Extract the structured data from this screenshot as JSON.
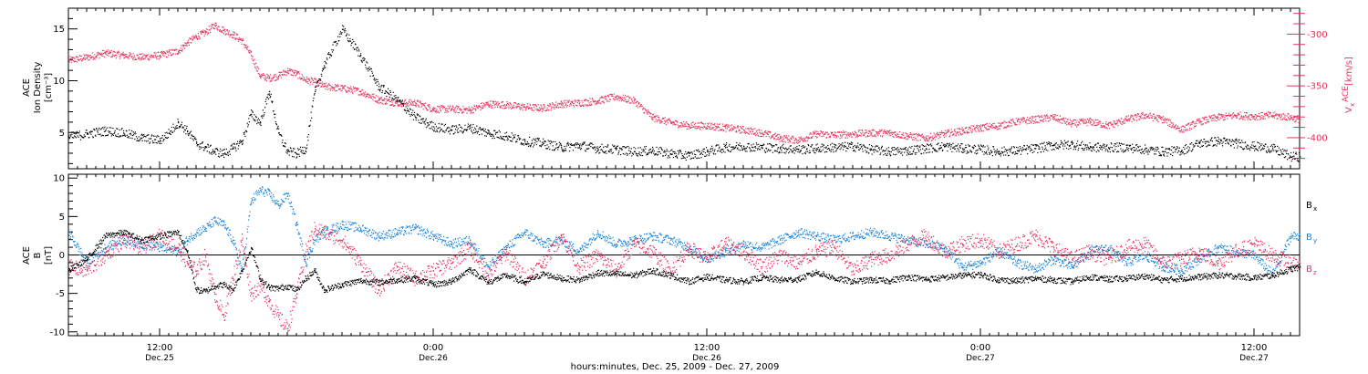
{
  "chart_data": [
    {
      "type": "scatter",
      "panel": "top",
      "ylabel_left": [
        "ACE",
        "Ion Density",
        "[cm⁻³]"
      ],
      "ylabel_right": [
        "V",
        "x",
        "ACE",
        "[km/s]"
      ],
      "left_axis": {
        "ylim": [
          1.5,
          17
        ],
        "ticks": [
          5,
          10,
          15
        ],
        "color": "#000000"
      },
      "right_axis": {
        "ylim": [
          -430,
          -275
        ],
        "ticks": [
          -300,
          -350,
          -400
        ],
        "color": "#e8315c"
      },
      "series": [
        {
          "name": "Ion Density",
          "axis": "left",
          "color": "#000000",
          "x": [
            0,
            2,
            4,
            6,
            8,
            10,
            11,
            12,
            13,
            14,
            15,
            16,
            17,
            18,
            19,
            20,
            21,
            22,
            23,
            24,
            25,
            26,
            27,
            28,
            30,
            32,
            34,
            36,
            38,
            40,
            42,
            44,
            46,
            48,
            50,
            52,
            54,
            56,
            58,
            60,
            62,
            64,
            66,
            68,
            70,
            72,
            74,
            76,
            78,
            80,
            82,
            84,
            86,
            88,
            90,
            92,
            94,
            96,
            98,
            100,
            102,
            104,
            106,
            108,
            110,
            112,
            114,
            116,
            118,
            120,
            122,
            124,
            126,
            128,
            130,
            132,
            134,
            135
          ],
          "y": [
            4.6,
            4.9,
            5.2,
            5.0,
            4.5,
            4.3,
            5.0,
            6.0,
            5.2,
            4.0,
            3.6,
            3.2,
            3.0,
            3.5,
            4.2,
            6.8,
            6.0,
            9.0,
            5.0,
            3.2,
            3.0,
            3.5,
            9.0,
            11.5,
            15.0,
            12.5,
            9.5,
            8.2,
            6.5,
            5.6,
            5.3,
            5.5,
            5.0,
            4.7,
            4.2,
            4.0,
            3.6,
            3.8,
            3.5,
            3.4,
            3.2,
            3.3,
            3.0,
            2.8,
            3.2,
            3.6,
            3.7,
            3.6,
            3.5,
            3.4,
            3.5,
            3.6,
            3.7,
            3.4,
            3.2,
            3.3,
            3.5,
            3.7,
            3.5,
            3.4,
            3.2,
            3.3,
            3.5,
            3.8,
            3.9,
            3.6,
            3.6,
            3.6,
            3.4,
            3.2,
            3.3,
            4.0,
            4.2,
            4.0,
            3.7,
            3.5,
            2.7,
            2.7
          ]
        },
        {
          "name": "Vx",
          "axis": "right",
          "color": "#e8315c",
          "x": [
            0,
            2,
            4,
            6,
            8,
            10,
            12,
            13,
            14,
            15,
            16,
            17,
            18,
            19,
            20,
            21,
            22,
            23,
            24,
            25,
            26,
            27,
            28,
            30,
            32,
            34,
            36,
            38,
            40,
            42,
            44,
            46,
            48,
            50,
            52,
            54,
            56,
            58,
            60,
            62,
            64,
            66,
            68,
            70,
            72,
            74,
            76,
            78,
            80,
            82,
            84,
            86,
            88,
            90,
            92,
            94,
            96,
            98,
            100,
            102,
            104,
            106,
            108,
            110,
            112,
            114,
            116,
            118,
            120,
            122,
            124,
            126,
            128,
            130,
            132,
            134,
            135
          ],
          "y": [
            -325,
            -322,
            -318,
            -320,
            -322,
            -320,
            -316,
            -308,
            -302,
            -298,
            -291,
            -296,
            -300,
            -306,
            -320,
            -340,
            -342,
            -340,
            -335,
            -338,
            -344,
            -346,
            -350,
            -352,
            -355,
            -363,
            -366,
            -366,
            -372,
            -372,
            -373,
            -367,
            -368,
            -370,
            -371,
            -367,
            -366,
            -364,
            -360,
            -364,
            -380,
            -385,
            -388,
            -388,
            -390,
            -392,
            -395,
            -400,
            -402,
            -396,
            -397,
            -396,
            -395,
            -395,
            -398,
            -400,
            -396,
            -393,
            -390,
            -388,
            -384,
            -382,
            -380,
            -386,
            -384,
            -388,
            -382,
            -378,
            -382,
            -392,
            -384,
            -380,
            -378,
            -379,
            -378,
            -380,
            -382
          ]
        }
      ]
    },
    {
      "type": "scatter",
      "panel": "bottom",
      "ylabel_left": [
        "ACE",
        "B",
        "[nT]"
      ],
      "ylim": [
        -10.5,
        10.5
      ],
      "yticks": [
        10,
        5,
        0,
        -5,
        -10
      ],
      "zero_line": true,
      "legend": [
        "B",
        "B",
        "B"
      ],
      "legend_subscripts": [
        "x",
        "y",
        "z"
      ],
      "legend_placement": "right",
      "series": [
        {
          "name": "Bx",
          "color": "#000000",
          "x": [
            0,
            2,
            4,
            6,
            8,
            10,
            12,
            13,
            14,
            15,
            16,
            17,
            18,
            19,
            20,
            21,
            22,
            23,
            24,
            25,
            26,
            27,
            28,
            30,
            32,
            34,
            36,
            38,
            40,
            42,
            44,
            46,
            48,
            50,
            52,
            54,
            56,
            58,
            60,
            62,
            64,
            66,
            68,
            70,
            72,
            74,
            76,
            78,
            80,
            82,
            84,
            86,
            88,
            90,
            92,
            94,
            96,
            98,
            100,
            102,
            104,
            106,
            108,
            110,
            112,
            114,
            116,
            118,
            120,
            122,
            124,
            126,
            128,
            130,
            132,
            134,
            135
          ],
          "y": [
            -2.0,
            -0.5,
            2.5,
            3.0,
            2.0,
            2.5,
            3.0,
            0.5,
            -4.5,
            -4.7,
            -4.0,
            -3.8,
            -4.5,
            -2.0,
            1.0,
            -3.0,
            -4.2,
            -4.3,
            -4.0,
            -4.5,
            -3.0,
            -2.0,
            -4.5,
            -3.8,
            -3.3,
            -3.5,
            -3.2,
            -3.0,
            -3.8,
            -3.4,
            -1.8,
            -3.5,
            -2.6,
            -3.5,
            -2.4,
            -3.0,
            -3.2,
            -2.3,
            -2.4,
            -2.6,
            -2.0,
            -2.6,
            -3.4,
            -2.8,
            -3.2,
            -3.4,
            -2.9,
            -3.2,
            -3.1,
            -2.2,
            -3.0,
            -3.4,
            -3.2,
            -3.3,
            -2.8,
            -3.1,
            -2.9,
            -2.6,
            -2.5,
            -3.2,
            -3.3,
            -3.0,
            -3.2,
            -3.4,
            -2.8,
            -3.1,
            -3.0,
            -2.7,
            -3.2,
            -3.0,
            -2.8,
            -2.6,
            -2.7,
            -2.9,
            -2.6,
            -1.8,
            -1.5
          ]
        },
        {
          "name": "By",
          "color": "#1783e0",
          "x": [
            0,
            2,
            4,
            6,
            8,
            10,
            12,
            13,
            14,
            15,
            16,
            17,
            18,
            19,
            20,
            21,
            22,
            23,
            24,
            25,
            26,
            27,
            28,
            30,
            32,
            34,
            36,
            38,
            40,
            42,
            44,
            46,
            48,
            50,
            52,
            54,
            56,
            58,
            60,
            62,
            64,
            66,
            68,
            70,
            72,
            74,
            76,
            78,
            80,
            82,
            84,
            86,
            88,
            90,
            92,
            94,
            96,
            98,
            100,
            102,
            104,
            106,
            108,
            110,
            112,
            114,
            116,
            118,
            120,
            122,
            124,
            126,
            128,
            130,
            132,
            134,
            135
          ],
          "y": [
            3.0,
            -1.0,
            1.0,
            2.0,
            1.5,
            1.0,
            0.5,
            2.0,
            3.0,
            3.5,
            4.5,
            4.0,
            2.0,
            -2.0,
            7.0,
            8.5,
            8.0,
            6.5,
            8.0,
            4.0,
            -1.0,
            2.0,
            3.0,
            4.0,
            3.5,
            2.5,
            3.0,
            3.5,
            2.5,
            1.5,
            2.0,
            -1.5,
            1.0,
            3.0,
            1.5,
            2.0,
            0.5,
            3.0,
            1.5,
            2.0,
            2.5,
            2.0,
            1.0,
            -0.5,
            0.5,
            1.5,
            1.0,
            2.0,
            3.0,
            2.5,
            2.0,
            2.5,
            3.0,
            2.5,
            2.0,
            1.5,
            1.0,
            -1.5,
            -1.0,
            0.5,
            -1.0,
            -1.8,
            -0.5,
            -1.5,
            0.5,
            1.0,
            -1.0,
            0.0,
            -1.5,
            -2.0,
            -0.5,
            1.0,
            0.5,
            0.0,
            -2.5,
            2.5,
            2.5
          ]
        },
        {
          "name": "Bz",
          "color": "#e8315c",
          "x": [
            0,
            2,
            4,
            6,
            8,
            10,
            12,
            13,
            14,
            15,
            16,
            17,
            18,
            19,
            20,
            21,
            22,
            23,
            24,
            25,
            26,
            27,
            28,
            30,
            32,
            34,
            36,
            38,
            40,
            42,
            44,
            46,
            48,
            50,
            52,
            54,
            56,
            58,
            60,
            62,
            64,
            66,
            68,
            70,
            72,
            74,
            76,
            78,
            80,
            82,
            84,
            86,
            88,
            90,
            92,
            94,
            96,
            98,
            100,
            102,
            104,
            106,
            108,
            110,
            112,
            114,
            116,
            118,
            120,
            122,
            124,
            126,
            128,
            130,
            132,
            134,
            135
          ],
          "y": [
            -1.5,
            -2.0,
            0.0,
            2.0,
            1.0,
            2.5,
            1.0,
            -1.0,
            -2.0,
            0.0,
            -5.0,
            -8.0,
            -3.0,
            2.0,
            -5.0,
            -4.0,
            -6.0,
            -8.0,
            -9.5,
            -5.0,
            0.5,
            3.5,
            3.0,
            2.0,
            -1.0,
            -4.5,
            -1.5,
            -3.0,
            -2.0,
            -1.0,
            1.0,
            -2.5,
            0.5,
            -3.0,
            -1.0,
            2.5,
            -1.5,
            0.0,
            -2.0,
            1.5,
            0.5,
            -2.0,
            1.0,
            -0.5,
            1.5,
            0.5,
            -1.5,
            0.0,
            -1.0,
            0.5,
            1.0,
            -2.0,
            -0.5,
            0.0,
            1.5,
            2.5,
            0.5,
            1.5,
            2.0,
            0.5,
            1.5,
            2.5,
            1.0,
            -0.5,
            0.5,
            -0.5,
            1.0,
            1.5,
            -1.0,
            -0.5,
            0.5,
            -1.0,
            0.5,
            1.5,
            0.0,
            -1.0,
            -1.0
          ]
        }
      ]
    }
  ],
  "x_axis": {
    "xlim": [
      0,
      135
    ],
    "ticks": [
      {
        "x": 10,
        "time": "12:00",
        "date": "Dec.25"
      },
      {
        "x": 40,
        "time": "0:00",
        "date": "Dec.26"
      },
      {
        "x": 70,
        "time": "12:00",
        "date": "Dec.26"
      },
      {
        "x": 100,
        "time": "0:00",
        "date": "Dec.27"
      },
      {
        "x": 130,
        "time": "12:00",
        "date": "Dec.27"
      }
    ],
    "label": "hours:minutes, Dec. 25, 2009 - Dec. 27, 2009"
  }
}
